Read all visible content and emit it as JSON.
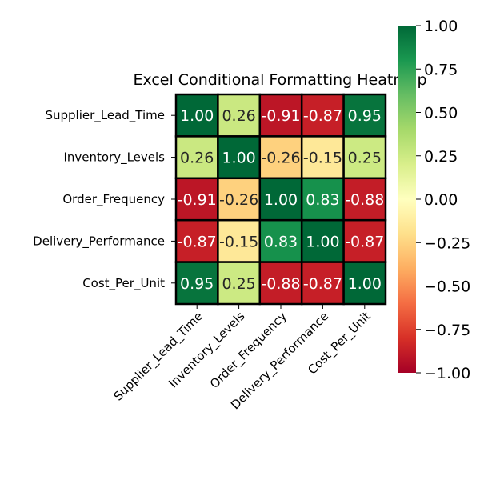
{
  "chart_data": {
    "type": "heatmap",
    "title": "Excel Conditional Formatting Heatmap",
    "row_labels": [
      "Supplier_Lead_Time",
      "Inventory_Levels",
      "Order_Frequency",
      "Delivery_Performance",
      "Cost_Per_Unit"
    ],
    "col_labels": [
      "Supplier_Lead_Time",
      "Inventory_Levels",
      "Order_Frequency",
      "Delivery_Performance",
      "Cost_Per_Unit"
    ],
    "values": [
      [
        1.0,
        0.26,
        -0.91,
        -0.87,
        0.95
      ],
      [
        0.26,
        1.0,
        -0.26,
        -0.15,
        0.25
      ],
      [
        -0.91,
        -0.26,
        1.0,
        0.83,
        -0.88
      ],
      [
        -0.87,
        -0.15,
        0.83,
        1.0,
        -0.87
      ],
      [
        0.95,
        0.25,
        -0.88,
        -0.87,
        1.0
      ]
    ],
    "cell_labels": [
      [
        "1.00",
        "0.26",
        "-0.91",
        "-0.87",
        "0.95"
      ],
      [
        "0.26",
        "1.00",
        "-0.26",
        "-0.15",
        "0.25"
      ],
      [
        "-0.91",
        "-0.26",
        "1.00",
        "0.83",
        "-0.88"
      ],
      [
        "-0.87",
        "-0.15",
        "0.83",
        "1.00",
        "-0.87"
      ],
      [
        "0.95",
        "0.25",
        "-0.88",
        "-0.87",
        "1.00"
      ]
    ],
    "colormap": "RdYlGn",
    "vmin": -1.0,
    "vmax": 1.0,
    "colorbar": {
      "ticks": [
        1.0,
        0.75,
        0.5,
        0.25,
        0.0,
        -0.25,
        -0.5,
        -0.75,
        -1.0
      ],
      "tick_labels": [
        "1.00",
        "0.75",
        "0.50",
        "0.25",
        "0.00",
        "−0.25",
        "−0.50",
        "−0.75",
        "−1.00"
      ]
    },
    "cell_border_color": "#000000",
    "grid": false
  }
}
